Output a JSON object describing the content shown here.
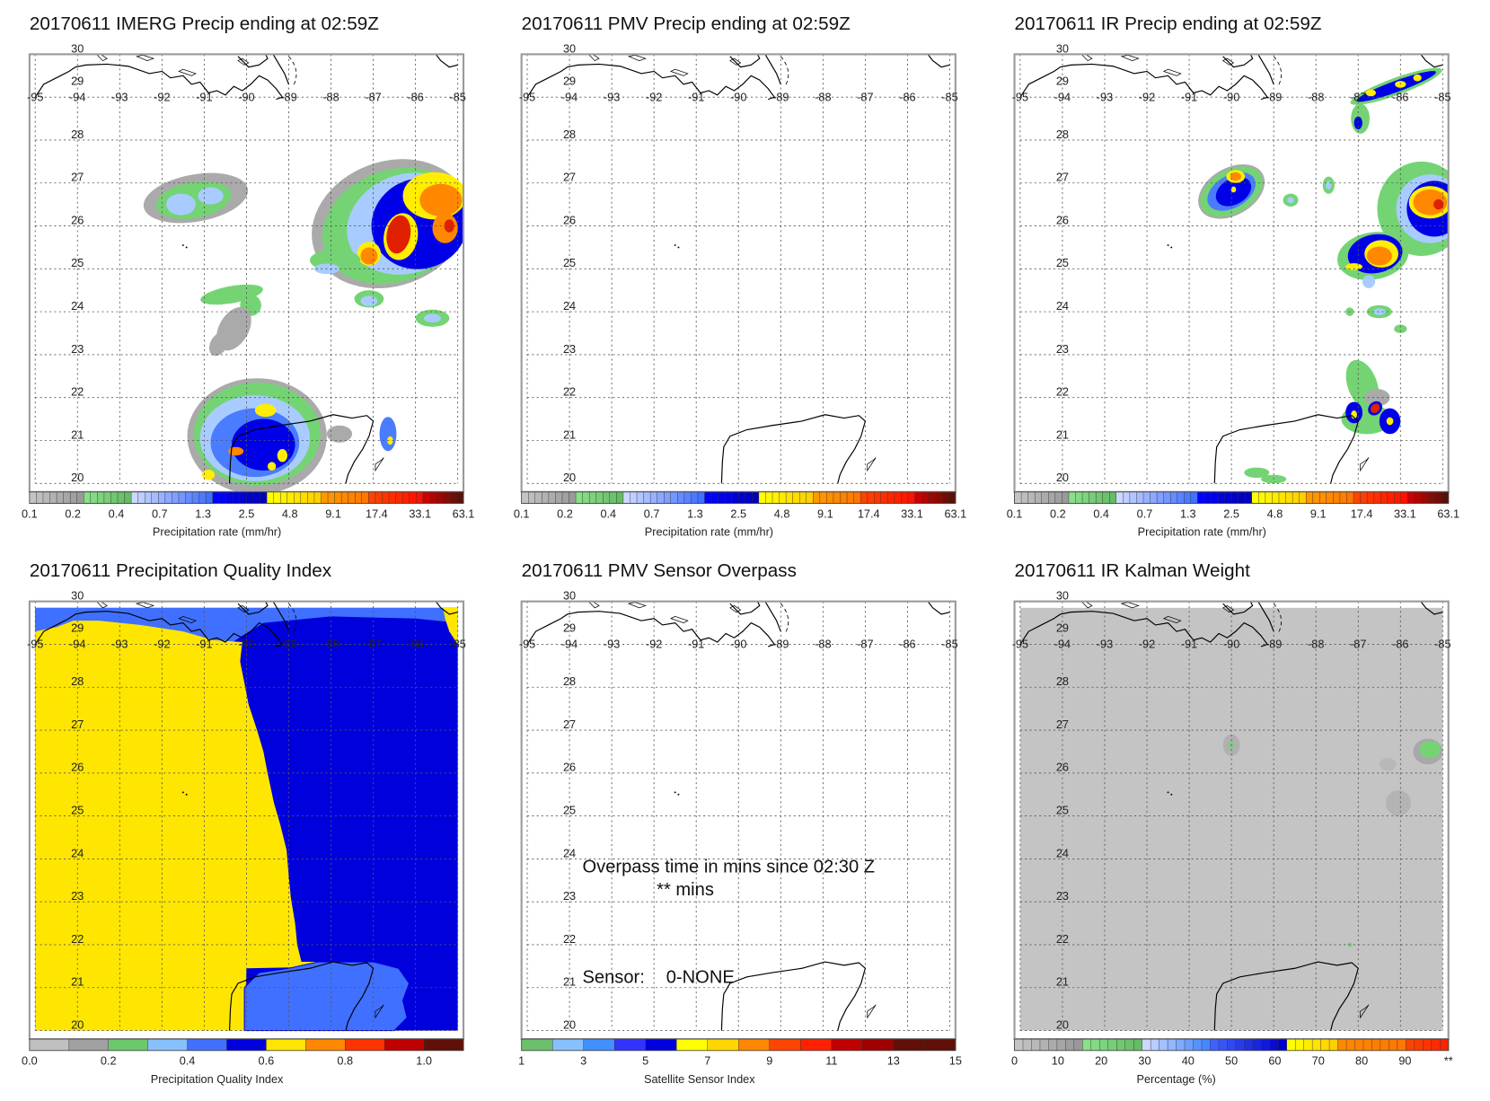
{
  "panels": [
    {
      "title": "20170611 IMERG Precip ending at 02:59Z",
      "colorbar": "precip",
      "layer": "imerg"
    },
    {
      "title": "20170611 PMV Precip ending at 02:59Z",
      "colorbar": "precip",
      "layer": "none"
    },
    {
      "title": "20170611 IR Precip ending at 02:59Z",
      "colorbar": "precip",
      "layer": "ir"
    },
    {
      "title": "20170611 Precipitation Quality Index",
      "colorbar": "pqi",
      "layer": "pqi"
    },
    {
      "title": "20170611 PMV Sensor Overpass",
      "colorbar": "sensor",
      "layer": "none"
    },
    {
      "title": "20170611 IR Kalman Weight",
      "colorbar": "percent",
      "layer": "kalman"
    }
  ],
  "map": {
    "lon_labels": [
      "-95",
      "-94",
      "-93",
      "-92",
      "-91",
      "-90",
      "-89",
      "-88",
      "-87",
      "-86",
      "-85"
    ],
    "lat_labels": [
      "30",
      "29",
      "28",
      "27",
      "26",
      "25",
      "24",
      "23",
      "22",
      "21",
      "20"
    ]
  },
  "colorbars": {
    "precip": {
      "label": "Precipitation rate (mm/hr)",
      "ticks": [
        "0.1",
        "0.2",
        "0.4",
        "0.7",
        "1.3",
        "2.5",
        "4.8",
        "9.1",
        "17.4",
        "33.1",
        "63.1"
      ],
      "groups": [
        {
          "from": "#c4c4c4",
          "to": "#9a9a9a",
          "n": 8
        },
        {
          "from": "#88e088",
          "to": "#66bb66",
          "n": 7
        },
        {
          "from": "#ccd8ff",
          "to": "#4070ff",
          "n": 12
        },
        {
          "from": "#0000ff",
          "to": "#0000b8",
          "n": 8
        },
        {
          "from": "#ffff00",
          "to": "#ffd000",
          "n": 8
        },
        {
          "from": "#ff9900",
          "to": "#ff7700",
          "n": 7
        },
        {
          "from": "#ff4400",
          "to": "#ff1100",
          "n": 8
        },
        {
          "from": "#cc0000",
          "to": "#5a1008",
          "n": 6
        }
      ]
    },
    "pqi": {
      "label": "Precipitation Quality Index",
      "ticks": [
        "0.0",
        "0.2",
        "0.4",
        "0.6",
        "0.8",
        "1.0"
      ],
      "tick_step_cells": 2,
      "colors": [
        "#c0c0c0",
        "#a0a0a0",
        "#6cc86c",
        "#88c0ff",
        "#4070ff",
        "#0000dd",
        "#ffe600",
        "#ff8800",
        "#ff3300",
        "#c00000",
        "#601008"
      ]
    },
    "sensor": {
      "label": "Satellite Sensor Index",
      "ticks": [
        "1",
        "3",
        "5",
        "7",
        "9",
        "11",
        "13",
        "15"
      ],
      "tick_step_cells": 2,
      "colors": [
        "#6cc06c",
        "#88c0ff",
        "#4090ff",
        "#3333ff",
        "#0000dd",
        "#ffff00",
        "#ffd700",
        "#ff8800",
        "#ff4400",
        "#ff2000",
        "#c00000",
        "#a00000",
        "#601008",
        "#601008"
      ]
    },
    "percent": {
      "label": "Percentage (%)",
      "ticks": [
        "0",
        "10",
        "20",
        "30",
        "40",
        "50",
        "60",
        "70",
        "80",
        "90",
        "**"
      ],
      "groups": [
        {
          "from": "#c4c4c4",
          "to": "#999999",
          "n": 8
        },
        {
          "from": "#88e088",
          "to": "#66bb66",
          "n": 7
        },
        {
          "from": "#ccd8ff",
          "to": "#4488ff",
          "n": 8
        },
        {
          "from": "#4060ff",
          "to": "#0000cc",
          "n": 9
        },
        {
          "from": "#ffff00",
          "to": "#ffd000",
          "n": 6
        },
        {
          "from": "#ff8800",
          "to": "#ff7700",
          "n": 8
        },
        {
          "from": "#ff4400",
          "to": "#ff2200",
          "n": 5
        }
      ]
    }
  },
  "overpass": {
    "line1": "Overpass time in mins since 02:30 Z",
    "line2": "** mins",
    "sensor_label": "Sensor:",
    "sensor_value": "0-NONE"
  },
  "chart_data": {
    "type": "heatmap",
    "xlim": [
      -95,
      -85
    ],
    "ylim": [
      20,
      30
    ],
    "grid": true,
    "titles": [
      "20170611 IMERG Precip ending at 02:59Z",
      "20170611 PMV Precip ending at 02:59Z",
      "20170611 IR Precip ending at 02:59Z",
      "20170611 Precipitation Quality Index",
      "20170611 PMV Sensor Overpass",
      "20170611 IR Kalman Weight"
    ]
  }
}
